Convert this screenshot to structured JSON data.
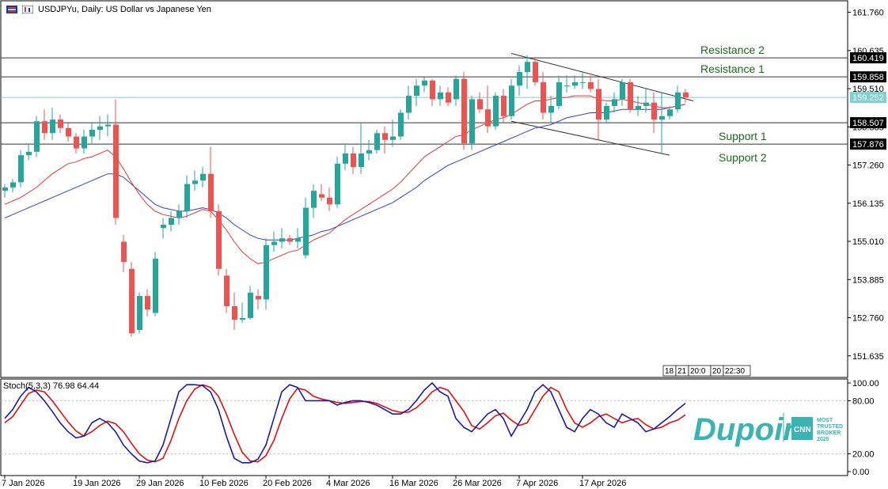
{
  "header": {
    "title": "USDJPYu, Daily:  US Dollar vs Japanese Yen",
    "icons": [
      "menu-icon",
      "chart-type-icon"
    ]
  },
  "price_axis": {
    "ticks": [
      "161.760",
      "160.635",
      "159.510",
      "158.385",
      "157.260",
      "156.135",
      "155.010",
      "153.885",
      "152.760",
      "151.635"
    ]
  },
  "price_labels": [
    {
      "name": "resistance-2-price",
      "text": "160.419",
      "value": 160.419,
      "style": "level"
    },
    {
      "name": "resistance-1-price",
      "text": "159.858",
      "value": 159.858,
      "style": "level"
    },
    {
      "name": "current-price",
      "text": "159.252",
      "value": 159.252,
      "style": "current"
    },
    {
      "name": "support-1-price",
      "text": "158.507",
      "value": 158.507,
      "style": "level"
    },
    {
      "name": "support-2-price",
      "text": "157.876",
      "value": 157.876,
      "style": "level"
    }
  ],
  "levels": [
    {
      "name": "resistance-2-line",
      "label": "Resistance 2",
      "value": 160.419,
      "label_side": "above"
    },
    {
      "name": "resistance-1-line",
      "label": "Resistance 1",
      "value": 159.858,
      "label_side": "above"
    },
    {
      "name": "support-1-line",
      "label": "Support 1",
      "value": 158.507,
      "label_side": "below"
    },
    {
      "name": "support-2-line",
      "label": "Support 2",
      "value": 157.876,
      "label_side": "below"
    }
  ],
  "time_axis": {
    "labels": [
      "7 Jan 2026",
      "19 Jan 2026",
      "29 Jan 2026",
      "10 Feb 2026",
      "20 Feb 2026",
      "4 Mar 2026",
      "16 Mar 2026",
      "26 Mar 2026",
      "7 Apr 2026",
      "17 Apr 2026"
    ],
    "label_bars": [
      0,
      9,
      17,
      25,
      33,
      41,
      49,
      57,
      65,
      73
    ],
    "crosshair_tags": [
      "18",
      "21",
      "20:0",
      "20",
      "22:30"
    ]
  },
  "stoch": {
    "label": "Stoch(5,3,3) 76.98 64.44",
    "ticks": [
      "100.00",
      "80.00",
      "20.00",
      "0.00"
    ],
    "levels": [
      100,
      80,
      20,
      0
    ]
  },
  "branding": {
    "logo_text": "Dupoin",
    "badge_text": "CNN",
    "tagline_lines": [
      "MOST",
      "TRUSTED",
      "BROKER",
      "2025"
    ],
    "color": "#3bb3b3"
  },
  "colors": {
    "bull": "#26a69a",
    "bear": "#ef5350",
    "ma_fast": "#e53935",
    "ma_slow": "#3040d8",
    "stoch_k": "#1a1aa6",
    "stoch_d": "#e01010",
    "level_label": "#1b6b1b",
    "current_price_line": "#7fcfcf"
  },
  "chart_data": {
    "type": "candlestick",
    "symbol": "USDJPYu",
    "timeframe": "Daily",
    "title": "USDJPYu, Daily:  US Dollar vs Japanese Yen",
    "price_range": [
      151.0,
      162.1
    ],
    "candles": [
      {
        "o": 156.5,
        "h": 156.7,
        "l": 156.3,
        "c": 156.6
      },
      {
        "o": 156.6,
        "h": 156.85,
        "l": 156.45,
        "c": 156.75
      },
      {
        "o": 156.75,
        "h": 157.7,
        "l": 156.6,
        "c": 157.55
      },
      {
        "o": 157.55,
        "h": 157.9,
        "l": 157.4,
        "c": 157.65
      },
      {
        "o": 157.65,
        "h": 158.7,
        "l": 157.5,
        "c": 158.55
      },
      {
        "o": 158.55,
        "h": 158.9,
        "l": 158.0,
        "c": 158.2
      },
      {
        "o": 158.2,
        "h": 158.95,
        "l": 158.0,
        "c": 158.6
      },
      {
        "o": 158.6,
        "h": 158.75,
        "l": 158.2,
        "c": 158.35
      },
      {
        "o": 158.35,
        "h": 158.5,
        "l": 157.95,
        "c": 158.1
      },
      {
        "o": 158.1,
        "h": 158.2,
        "l": 157.6,
        "c": 157.75
      },
      {
        "o": 157.75,
        "h": 158.3,
        "l": 157.6,
        "c": 158.1
      },
      {
        "o": 158.1,
        "h": 158.5,
        "l": 157.9,
        "c": 158.3
      },
      {
        "o": 158.3,
        "h": 158.7,
        "l": 158.0,
        "c": 158.4
      },
      {
        "o": 158.4,
        "h": 158.75,
        "l": 158.1,
        "c": 158.45
      },
      {
        "o": 158.45,
        "h": 159.2,
        "l": 155.5,
        "c": 155.7
      },
      {
        "o": 155.0,
        "h": 155.2,
        "l": 154.1,
        "c": 154.4
      },
      {
        "o": 154.2,
        "h": 154.4,
        "l": 152.2,
        "c": 152.3
      },
      {
        "o": 152.4,
        "h": 153.5,
        "l": 152.3,
        "c": 153.4
      },
      {
        "o": 153.4,
        "h": 153.6,
        "l": 152.8,
        "c": 153.0
      },
      {
        "o": 152.9,
        "h": 154.7,
        "l": 152.8,
        "c": 154.5
      },
      {
        "o": 155.4,
        "h": 155.7,
        "l": 155.1,
        "c": 155.5
      },
      {
        "o": 155.5,
        "h": 155.9,
        "l": 155.3,
        "c": 155.7
      },
      {
        "o": 155.7,
        "h": 156.1,
        "l": 155.5,
        "c": 155.9
      },
      {
        "o": 155.9,
        "h": 156.95,
        "l": 155.7,
        "c": 156.7
      },
      {
        "o": 156.7,
        "h": 157.1,
        "l": 156.5,
        "c": 156.8
      },
      {
        "o": 156.8,
        "h": 157.2,
        "l": 156.6,
        "c": 157.0
      },
      {
        "o": 157.0,
        "h": 157.8,
        "l": 155.7,
        "c": 155.9
      },
      {
        "o": 155.9,
        "h": 156.1,
        "l": 154.0,
        "c": 154.2
      },
      {
        "o": 154.0,
        "h": 154.2,
        "l": 152.9,
        "c": 153.1
      },
      {
        "o": 153.1,
        "h": 153.5,
        "l": 152.4,
        "c": 152.7
      },
      {
        "o": 152.7,
        "h": 153.2,
        "l": 152.6,
        "c": 152.75
      },
      {
        "o": 152.75,
        "h": 153.7,
        "l": 152.7,
        "c": 153.5
      },
      {
        "o": 153.4,
        "h": 153.6,
        "l": 153.0,
        "c": 153.3
      },
      {
        "o": 153.3,
        "h": 155.1,
        "l": 153.0,
        "c": 154.9
      },
      {
        "o": 154.9,
        "h": 155.3,
        "l": 154.7,
        "c": 155.0
      },
      {
        "o": 155.0,
        "h": 155.4,
        "l": 154.8,
        "c": 155.1
      },
      {
        "o": 155.1,
        "h": 155.2,
        "l": 154.9,
        "c": 155.0
      },
      {
        "o": 155.0,
        "h": 155.4,
        "l": 154.8,
        "c": 155.1
      },
      {
        "o": 154.6,
        "h": 156.3,
        "l": 154.5,
        "c": 156.0
      },
      {
        "o": 156.0,
        "h": 156.7,
        "l": 155.7,
        "c": 156.5
      },
      {
        "o": 156.4,
        "h": 156.7,
        "l": 156.2,
        "c": 156.3
      },
      {
        "o": 156.3,
        "h": 156.6,
        "l": 155.9,
        "c": 156.1
      },
      {
        "o": 156.1,
        "h": 157.5,
        "l": 156.0,
        "c": 157.3
      },
      {
        "o": 157.3,
        "h": 157.9,
        "l": 157.1,
        "c": 157.6
      },
      {
        "o": 157.6,
        "h": 157.8,
        "l": 157.0,
        "c": 157.2
      },
      {
        "o": 157.2,
        "h": 158.5,
        "l": 157.0,
        "c": 157.6
      },
      {
        "o": 157.6,
        "h": 158.0,
        "l": 157.4,
        "c": 157.7
      },
      {
        "o": 157.7,
        "h": 158.3,
        "l": 157.6,
        "c": 158.2
      },
      {
        "o": 158.2,
        "h": 158.4,
        "l": 157.6,
        "c": 158.0
      },
      {
        "o": 158.0,
        "h": 158.6,
        "l": 157.8,
        "c": 158.1
      },
      {
        "o": 158.1,
        "h": 158.9,
        "l": 158.0,
        "c": 158.8
      },
      {
        "o": 158.8,
        "h": 159.6,
        "l": 158.6,
        "c": 159.3
      },
      {
        "o": 159.3,
        "h": 159.8,
        "l": 159.0,
        "c": 159.6
      },
      {
        "o": 159.6,
        "h": 159.85,
        "l": 159.4,
        "c": 159.75
      },
      {
        "o": 159.75,
        "h": 159.8,
        "l": 159.0,
        "c": 159.2
      },
      {
        "o": 159.2,
        "h": 159.6,
        "l": 159.0,
        "c": 159.4
      },
      {
        "o": 159.4,
        "h": 159.55,
        "l": 159.0,
        "c": 159.1
      },
      {
        "o": 159.2,
        "h": 159.9,
        "l": 159.0,
        "c": 159.8
      },
      {
        "o": 159.8,
        "h": 160.0,
        "l": 157.7,
        "c": 157.9
      },
      {
        "o": 157.9,
        "h": 159.3,
        "l": 157.7,
        "c": 159.2
      },
      {
        "o": 159.2,
        "h": 159.4,
        "l": 158.8,
        "c": 158.9
      },
      {
        "o": 158.9,
        "h": 159.6,
        "l": 158.2,
        "c": 158.4
      },
      {
        "o": 158.4,
        "h": 159.4,
        "l": 158.3,
        "c": 159.3
      },
      {
        "o": 159.3,
        "h": 159.5,
        "l": 158.5,
        "c": 158.7
      },
      {
        "o": 158.7,
        "h": 159.8,
        "l": 158.6,
        "c": 159.6
      },
      {
        "o": 159.6,
        "h": 160.2,
        "l": 159.3,
        "c": 160.0
      },
      {
        "o": 160.0,
        "h": 160.5,
        "l": 159.5,
        "c": 160.3
      },
      {
        "o": 160.3,
        "h": 160.45,
        "l": 159.6,
        "c": 159.7
      },
      {
        "o": 159.7,
        "h": 160.0,
        "l": 158.6,
        "c": 158.8
      },
      {
        "o": 158.8,
        "h": 159.3,
        "l": 158.5,
        "c": 159.0
      },
      {
        "o": 159.0,
        "h": 159.9,
        "l": 158.9,
        "c": 159.7
      },
      {
        "o": 159.6,
        "h": 159.9,
        "l": 159.4,
        "c": 159.6
      },
      {
        "o": 159.6,
        "h": 159.9,
        "l": 159.5,
        "c": 159.7
      },
      {
        "o": 159.7,
        "h": 160.0,
        "l": 159.5,
        "c": 159.7
      },
      {
        "o": 159.7,
        "h": 159.9,
        "l": 159.4,
        "c": 159.5
      },
      {
        "o": 159.5,
        "h": 159.8,
        "l": 158.0,
        "c": 158.6
      },
      {
        "o": 158.6,
        "h": 159.1,
        "l": 158.5,
        "c": 159.0
      },
      {
        "o": 159.0,
        "h": 159.4,
        "l": 158.8,
        "c": 159.2
      },
      {
        "o": 159.2,
        "h": 159.8,
        "l": 159.0,
        "c": 159.7
      },
      {
        "o": 159.7,
        "h": 159.8,
        "l": 158.8,
        "c": 158.9
      },
      {
        "o": 158.9,
        "h": 159.3,
        "l": 158.7,
        "c": 159.0
      },
      {
        "o": 159.0,
        "h": 159.5,
        "l": 158.8,
        "c": 159.1
      },
      {
        "o": 159.1,
        "h": 159.4,
        "l": 158.2,
        "c": 158.6
      },
      {
        "o": 158.6,
        "h": 159.4,
        "l": 157.6,
        "c": 158.7
      },
      {
        "o": 158.7,
        "h": 159.0,
        "l": 158.6,
        "c": 158.9
      },
      {
        "o": 158.9,
        "h": 159.6,
        "l": 158.8,
        "c": 159.4
      },
      {
        "o": 159.4,
        "h": 159.5,
        "l": 159.1,
        "c": 159.25
      }
    ],
    "ma_fast": [
      156.1,
      156.2,
      156.3,
      156.45,
      156.6,
      156.8,
      157.0,
      157.15,
      157.3,
      157.35,
      157.45,
      157.5,
      157.6,
      157.7,
      157.5,
      157.15,
      156.75,
      156.4,
      156.1,
      155.9,
      155.8,
      155.75,
      155.7,
      155.75,
      155.85,
      155.95,
      155.9,
      155.65,
      155.35,
      155.0,
      154.7,
      154.5,
      154.35,
      154.4,
      154.5,
      154.6,
      154.7,
      154.75,
      154.9,
      155.05,
      155.15,
      155.25,
      155.45,
      155.65,
      155.8,
      155.95,
      156.1,
      156.25,
      156.4,
      156.55,
      156.75,
      157.0,
      157.25,
      157.5,
      157.65,
      157.8,
      157.95,
      158.1,
      158.15,
      158.3,
      158.4,
      158.5,
      158.6,
      158.65,
      158.75,
      158.9,
      159.05,
      159.15,
      159.15,
      159.2,
      159.25,
      159.25,
      159.3,
      159.3,
      159.3,
      159.2,
      159.15,
      159.15,
      159.2,
      159.15,
      159.1,
      159.05,
      159.0,
      158.95,
      158.95,
      159.0,
      159.05
    ],
    "ma_slow": [
      155.7,
      155.8,
      155.9,
      156.0,
      156.1,
      156.2,
      156.3,
      156.4,
      156.5,
      156.6,
      156.7,
      156.8,
      156.9,
      157.0,
      157.0,
      156.9,
      156.7,
      156.5,
      156.3,
      156.1,
      156.0,
      155.95,
      155.9,
      155.9,
      155.95,
      156.0,
      155.95,
      155.85,
      155.7,
      155.5,
      155.35,
      155.2,
      155.1,
      155.05,
      155.05,
      155.05,
      155.05,
      155.1,
      155.15,
      155.2,
      155.3,
      155.35,
      155.45,
      155.55,
      155.65,
      155.75,
      155.85,
      155.95,
      156.05,
      156.15,
      156.3,
      156.45,
      156.6,
      156.8,
      156.95,
      157.1,
      157.25,
      157.35,
      157.45,
      157.55,
      157.65,
      157.75,
      157.85,
      157.95,
      158.05,
      158.15,
      158.25,
      158.35,
      158.4,
      158.45,
      158.55,
      158.65,
      158.7,
      158.75,
      158.8,
      158.8,
      158.8,
      158.85,
      158.9,
      158.9,
      158.9,
      158.9,
      158.9,
      158.9,
      158.95,
      159.0,
      159.05
    ],
    "stoch_k": [
      60,
      70,
      85,
      95,
      90,
      80,
      68,
      55,
      45,
      38,
      40,
      55,
      60,
      55,
      45,
      30,
      20,
      12,
      10,
      12,
      30,
      60,
      90,
      98,
      98,
      97,
      90,
      70,
      40,
      15,
      10,
      10,
      14,
      30,
      60,
      90,
      98,
      95,
      80,
      80,
      80,
      80,
      75,
      78,
      80,
      80,
      78,
      75,
      70,
      65,
      65,
      70,
      80,
      92,
      100,
      90,
      85,
      60,
      50,
      45,
      55,
      65,
      70,
      60,
      40,
      55,
      70,
      90,
      98,
      90,
      70,
      50,
      45,
      60,
      70,
      65,
      55,
      50,
      65,
      60,
      55,
      45,
      48,
      55,
      62,
      70,
      77
    ],
    "stoch_d": [
      55,
      62,
      75,
      88,
      92,
      90,
      80,
      68,
      56,
      46,
      40,
      45,
      52,
      57,
      54,
      45,
      32,
      20,
      13,
      11,
      15,
      35,
      60,
      80,
      93,
      98,
      95,
      85,
      65,
      42,
      22,
      12,
      11,
      18,
      35,
      60,
      82,
      94,
      92,
      85,
      82,
      80,
      78,
      77,
      78,
      79,
      79,
      77,
      73,
      69,
      67,
      67,
      72,
      80,
      90,
      95,
      92,
      80,
      68,
      52,
      48,
      55,
      63,
      66,
      58,
      52,
      55,
      70,
      85,
      95,
      90,
      70,
      55,
      50,
      55,
      62,
      65,
      60,
      55,
      58,
      60,
      53,
      48,
      50,
      55,
      58,
      64
    ]
  }
}
